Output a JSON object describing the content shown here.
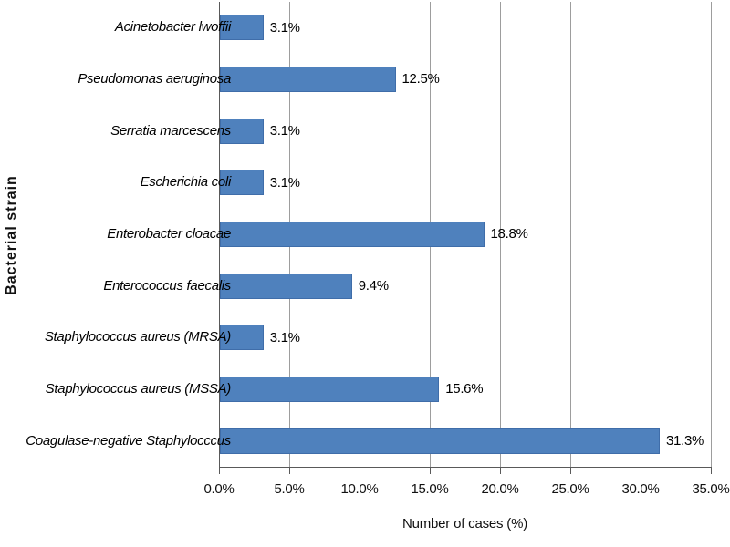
{
  "chart_data": {
    "type": "bar",
    "orientation": "horizontal",
    "title": "",
    "xlabel": "Number of cases (%)",
    "ylabel": "Bacterial strain",
    "xlim": [
      0,
      35
    ],
    "grid": true,
    "legend": false,
    "x_ticks": [
      {
        "value": 0,
        "label": "0.0%"
      },
      {
        "value": 5,
        "label": "5.0%"
      },
      {
        "value": 10,
        "label": "10.0%"
      },
      {
        "value": 15,
        "label": "15.0%"
      },
      {
        "value": 20,
        "label": "20.0%"
      },
      {
        "value": 25,
        "label": "25.0%"
      },
      {
        "value": 30,
        "label": "30.0%"
      },
      {
        "value": 35,
        "label": "35.0%"
      }
    ],
    "categories": [
      "Acinetobacter lwoffii",
      "Pseudomonas aeruginosa",
      "Serratia marcescens",
      "Escherichia coli",
      "Enterobacter cloacae",
      "Enterococcus faecalis",
      "Staphylococcus aureus (MRSA)",
      "Staphylococcus aureus (MSSA)",
      "Coagulase-negative Staphylocccus"
    ],
    "values": [
      3.1,
      12.5,
      3.1,
      3.1,
      18.8,
      9.4,
      3.1,
      15.6,
      31.3
    ],
    "data_labels": [
      "3.1%",
      "12.5%",
      "3.1%",
      "3.1%",
      "18.8%",
      "9.4%",
      "3.1%",
      "15.6%",
      "31.3%"
    ],
    "colors": {
      "bar_fill": "#4f81bd",
      "bar_border": "#3f6da9",
      "gridline": "#9d9d9d",
      "axis_line": "#595959",
      "text": "#111111"
    }
  }
}
